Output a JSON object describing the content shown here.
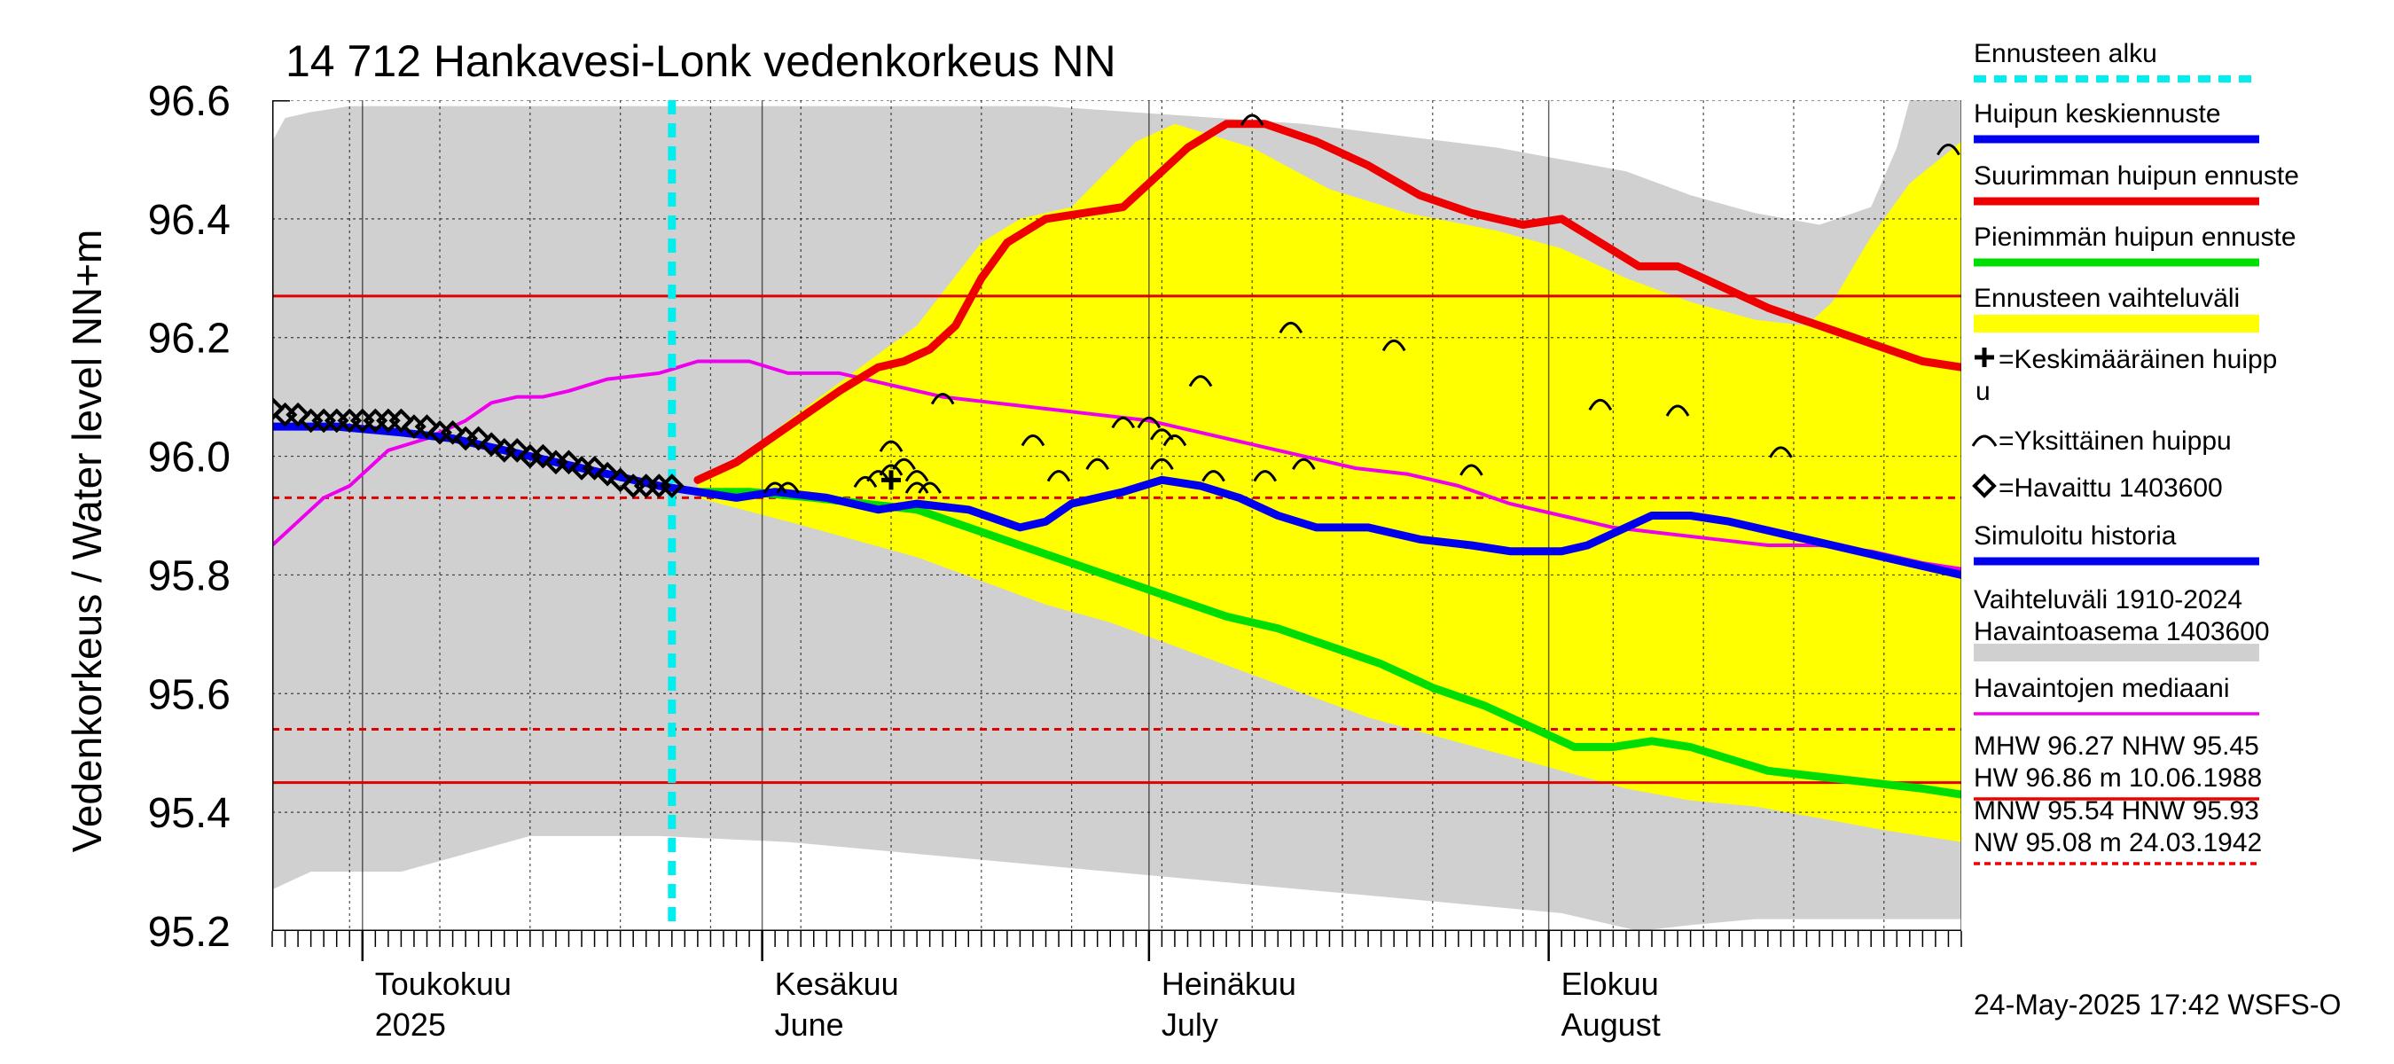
{
  "chart_data": {
    "type": "line",
    "title": "14 712 Hankavesi-Lonk vedenkorkeus NN",
    "ylabel": "Vedenkorkeus / Water level   NN+m",
    "ylim": [
      95.2,
      96.6
    ],
    "yticks": [
      "95.2",
      "95.4",
      "95.6",
      "95.8",
      "96.0",
      "96.2",
      "96.4",
      "96.6"
    ],
    "x_start_day": 0,
    "x_end_day": 131,
    "x_axis_note": "days since 2025-04-24",
    "month_labels": [
      {
        "day": 7,
        "line1": "Toukokuu",
        "line2": "2025"
      },
      {
        "day": 38,
        "line1": "Kesäkuu",
        "line2": "June"
      },
      {
        "day": 68,
        "line1": "Heinäkuu",
        "line2": "July"
      },
      {
        "day": 99,
        "line1": "Elokuu",
        "line2": "August"
      }
    ],
    "forecast_start_day": 31,
    "reference_lines": [
      {
        "name": "MHW",
        "value": 96.27,
        "style": "solid",
        "color": "#e00000"
      },
      {
        "name": "NHW",
        "value": 95.45,
        "style": "solid",
        "color": "#e00000"
      },
      {
        "name": "MNW",
        "value": 95.54,
        "style": "dashed",
        "color": "#e00000"
      },
      {
        "name": "HNW",
        "value": 95.93,
        "style": "dashed",
        "color": "#e00000"
      }
    ],
    "historical_band": {
      "name": "Vaihteluväli 1910-2024 Havaintoasema 1403600",
      "color": "#d0d0d0",
      "upper": [
        [
          0,
          96.53
        ],
        [
          1,
          96.57
        ],
        [
          3,
          96.58
        ],
        [
          6,
          96.59
        ],
        [
          30,
          96.59
        ],
        [
          60,
          96.59
        ],
        [
          80,
          96.56
        ],
        [
          95,
          96.52
        ],
        [
          105,
          96.48
        ],
        [
          110,
          96.44
        ],
        [
          115,
          96.41
        ],
        [
          120,
          96.39
        ],
        [
          124,
          96.42
        ],
        [
          126,
          96.52
        ],
        [
          127,
          96.6
        ],
        [
          131,
          96.6
        ]
      ],
      "lower": [
        [
          0,
          95.27
        ],
        [
          1,
          95.28
        ],
        [
          3,
          95.3
        ],
        [
          10,
          95.3
        ],
        [
          20,
          95.36
        ],
        [
          30,
          95.36
        ],
        [
          40,
          95.35
        ],
        [
          50,
          95.33
        ],
        [
          60,
          95.31
        ],
        [
          70,
          95.29
        ],
        [
          80,
          95.27
        ],
        [
          90,
          95.25
        ],
        [
          100,
          95.23
        ],
        [
          106,
          95.2
        ],
        [
          110,
          95.21
        ],
        [
          115,
          95.22
        ],
        [
          120,
          95.22
        ],
        [
          125,
          95.22
        ],
        [
          131,
          95.22
        ]
      ]
    },
    "forecast_band": {
      "name": "Ennusteen vaihteluväli",
      "color": "#ffff00",
      "upper": [
        [
          33,
          95.96
        ],
        [
          36,
          95.99
        ],
        [
          40,
          96.06
        ],
        [
          45,
          96.14
        ],
        [
          50,
          96.22
        ],
        [
          55,
          96.36
        ],
        [
          58,
          96.4
        ],
        [
          62,
          96.42
        ],
        [
          67,
          96.53
        ],
        [
          70,
          96.56
        ],
        [
          76,
          96.52
        ],
        [
          82,
          96.45
        ],
        [
          88,
          96.41
        ],
        [
          95,
          96.38
        ],
        [
          100,
          96.35
        ],
        [
          105,
          96.3
        ],
        [
          110,
          96.26
        ],
        [
          115,
          96.23
        ],
        [
          119,
          96.22
        ],
        [
          121,
          96.26
        ],
        [
          124,
          96.37
        ],
        [
          127,
          96.46
        ],
        [
          131,
          96.53
        ]
      ],
      "lower": [
        [
          33,
          95.93
        ],
        [
          40,
          95.89
        ],
        [
          45,
          95.86
        ],
        [
          50,
          95.83
        ],
        [
          55,
          95.79
        ],
        [
          60,
          95.75
        ],
        [
          65,
          95.72
        ],
        [
          70,
          95.68
        ],
        [
          75,
          95.64
        ],
        [
          80,
          95.6
        ],
        [
          85,
          95.56
        ],
        [
          90,
          95.53
        ],
        [
          95,
          95.5
        ],
        [
          100,
          95.47
        ],
        [
          105,
          95.44
        ],
        [
          110,
          95.42
        ],
        [
          115,
          95.41
        ],
        [
          120,
          95.39
        ],
        [
          125,
          95.37
        ],
        [
          131,
          95.35
        ]
      ]
    },
    "series": [
      {
        "name": "Havaintojen mediaani",
        "color": "#ee00ee",
        "width": 4,
        "points": [
          [
            0,
            95.85
          ],
          [
            2,
            95.89
          ],
          [
            4,
            95.93
          ],
          [
            6,
            95.95
          ],
          [
            9,
            96.01
          ],
          [
            12,
            96.03
          ],
          [
            15,
            96.06
          ],
          [
            17,
            96.09
          ],
          [
            19,
            96.1
          ],
          [
            21,
            96.1
          ],
          [
            23,
            96.11
          ],
          [
            26,
            96.13
          ],
          [
            30,
            96.14
          ],
          [
            33,
            96.16
          ],
          [
            37,
            96.16
          ],
          [
            40,
            96.14
          ],
          [
            44,
            96.14
          ],
          [
            48,
            96.12
          ],
          [
            52,
            96.1
          ],
          [
            56,
            96.09
          ],
          [
            60,
            96.08
          ],
          [
            64,
            96.07
          ],
          [
            68,
            96.06
          ],
          [
            72,
            96.04
          ],
          [
            76,
            96.02
          ],
          [
            80,
            96.0
          ],
          [
            84,
            95.98
          ],
          [
            88,
            95.97
          ],
          [
            92,
            95.95
          ],
          [
            96,
            95.92
          ],
          [
            100,
            95.9
          ],
          [
            104,
            95.88
          ],
          [
            108,
            95.87
          ],
          [
            112,
            95.86
          ],
          [
            116,
            95.85
          ],
          [
            120,
            95.85
          ],
          [
            124,
            95.84
          ],
          [
            128,
            95.82
          ],
          [
            131,
            95.81
          ]
        ]
      },
      {
        "name": "Suurimman huipun ennuste",
        "color": "#ee0000",
        "width": 9,
        "points": [
          [
            33,
            95.96
          ],
          [
            36,
            95.99
          ],
          [
            40,
            96.05
          ],
          [
            44,
            96.11
          ],
          [
            47,
            96.15
          ],
          [
            49,
            96.16
          ],
          [
            51,
            96.18
          ],
          [
            53,
            96.22
          ],
          [
            55,
            96.3
          ],
          [
            57,
            96.36
          ],
          [
            60,
            96.4
          ],
          [
            63,
            96.41
          ],
          [
            66,
            96.42
          ],
          [
            68,
            96.46
          ],
          [
            71,
            96.52
          ],
          [
            74,
            96.56
          ],
          [
            77,
            96.56
          ],
          [
            81,
            96.53
          ],
          [
            85,
            96.49
          ],
          [
            89,
            96.44
          ],
          [
            93,
            96.41
          ],
          [
            97,
            96.39
          ],
          [
            100,
            96.4
          ],
          [
            103,
            96.36
          ],
          [
            106,
            96.32
          ],
          [
            109,
            96.32
          ],
          [
            112,
            96.29
          ],
          [
            116,
            96.25
          ],
          [
            120,
            96.22
          ],
          [
            124,
            96.19
          ],
          [
            128,
            96.16
          ],
          [
            131,
            96.15
          ]
        ]
      },
      {
        "name": "Pienimmän huipun ennuste",
        "color": "#00dd00",
        "width": 9,
        "points": [
          [
            33,
            95.94
          ],
          [
            37,
            95.94
          ],
          [
            42,
            95.93
          ],
          [
            46,
            95.92
          ],
          [
            50,
            95.91
          ],
          [
            54,
            95.88
          ],
          [
            58,
            95.85
          ],
          [
            62,
            95.82
          ],
          [
            66,
            95.79
          ],
          [
            70,
            95.76
          ],
          [
            74,
            95.73
          ],
          [
            78,
            95.71
          ],
          [
            82,
            95.68
          ],
          [
            86,
            95.65
          ],
          [
            90,
            95.61
          ],
          [
            94,
            95.58
          ],
          [
            98,
            95.54
          ],
          [
            101,
            95.51
          ],
          [
            104,
            95.51
          ],
          [
            107,
            95.52
          ],
          [
            110,
            95.51
          ],
          [
            113,
            95.49
          ],
          [
            116,
            95.47
          ],
          [
            120,
            95.46
          ],
          [
            124,
            95.45
          ],
          [
            128,
            95.44
          ],
          [
            131,
            95.43
          ]
        ]
      },
      {
        "name": "Huipun keskiennuste",
        "color": "#0000ee",
        "width": 9,
        "points": [
          [
            0,
            96.05
          ],
          [
            5,
            96.05
          ],
          [
            10,
            96.04
          ],
          [
            14,
            96.03
          ],
          [
            18,
            96.01
          ],
          [
            22,
            95.99
          ],
          [
            26,
            95.97
          ],
          [
            30,
            95.95
          ],
          [
            33,
            95.94
          ],
          [
            36,
            95.93
          ],
          [
            39,
            95.94
          ],
          [
            43,
            95.93
          ],
          [
            47,
            95.91
          ],
          [
            50,
            95.92
          ],
          [
            54,
            95.91
          ],
          [
            58,
            95.88
          ],
          [
            60,
            95.89
          ],
          [
            62,
            95.92
          ],
          [
            64,
            95.93
          ],
          [
            66,
            95.94
          ],
          [
            69,
            95.96
          ],
          [
            72,
            95.95
          ],
          [
            75,
            95.93
          ],
          [
            78,
            95.9
          ],
          [
            81,
            95.88
          ],
          [
            85,
            95.88
          ],
          [
            89,
            95.86
          ],
          [
            93,
            95.85
          ],
          [
            96,
            95.84
          ],
          [
            100,
            95.84
          ],
          [
            102,
            95.85
          ],
          [
            104,
            95.87
          ],
          [
            107,
            95.9
          ],
          [
            110,
            95.9
          ],
          [
            113,
            95.89
          ],
          [
            117,
            95.87
          ],
          [
            121,
            95.85
          ],
          [
            125,
            95.83
          ],
          [
            129,
            95.81
          ],
          [
            131,
            95.8
          ]
        ]
      }
    ],
    "observed": {
      "name": "Havaittu 1403600",
      "points": [
        [
          0,
          96.08
        ],
        [
          1,
          96.07
        ],
        [
          2,
          96.07
        ],
        [
          3,
          96.06
        ],
        [
          4,
          96.06
        ],
        [
          5,
          96.06
        ],
        [
          6,
          96.06
        ],
        [
          7,
          96.06
        ],
        [
          8,
          96.06
        ],
        [
          9,
          96.06
        ],
        [
          10,
          96.06
        ],
        [
          11,
          96.05
        ],
        [
          12,
          96.05
        ],
        [
          13,
          96.04
        ],
        [
          14,
          96.04
        ],
        [
          15,
          96.03
        ],
        [
          16,
          96.03
        ],
        [
          17,
          96.02
        ],
        [
          18,
          96.01
        ],
        [
          19,
          96.01
        ],
        [
          20,
          96.0
        ],
        [
          21,
          96.0
        ],
        [
          22,
          95.99
        ],
        [
          23,
          95.99
        ],
        [
          24,
          95.98
        ],
        [
          25,
          95.98
        ],
        [
          26,
          95.97
        ],
        [
          27,
          95.96
        ],
        [
          28,
          95.95
        ],
        [
          29,
          95.95
        ],
        [
          30,
          95.95
        ],
        [
          31,
          95.95
        ]
      ]
    },
    "mean_peak": {
      "name": "Keskimääräinen huippu",
      "points": [
        [
          48,
          95.96
        ]
      ]
    },
    "single_peaks": {
      "name": "Yksittäinen huippu",
      "points": [
        [
          39,
          95.95
        ],
        [
          40,
          95.95
        ],
        [
          46,
          95.96
        ],
        [
          47,
          95.97
        ],
        [
          48,
          96.02
        ],
        [
          48,
          95.98
        ],
        [
          49,
          95.99
        ],
        [
          50,
          95.97
        ],
        [
          50,
          95.95
        ],
        [
          51,
          95.95
        ],
        [
          52,
          96.1
        ],
        [
          59,
          96.03
        ],
        [
          61,
          95.97
        ],
        [
          64,
          95.99
        ],
        [
          66,
          96.06
        ],
        [
          68,
          96.06
        ],
        [
          69,
          96.04
        ],
        [
          70,
          96.03
        ],
        [
          69,
          95.99
        ],
        [
          72,
          96.13
        ],
        [
          73,
          95.97
        ],
        [
          77,
          95.97
        ],
        [
          79,
          96.22
        ],
        [
          80,
          95.99
        ],
        [
          87,
          96.19
        ],
        [
          93,
          95.98
        ],
        [
          103,
          96.09
        ],
        [
          109,
          96.08
        ],
        [
          117,
          96.01
        ],
        [
          130,
          96.52
        ],
        [
          76,
          96.57
        ]
      ]
    },
    "legend": [
      {
        "label": "Ennusteen alku",
        "kind": "dashed",
        "color": "#00eeee"
      },
      {
        "label": "Huipun keskiennuste",
        "kind": "line",
        "color": "#0000ee"
      },
      {
        "label": "Suurimman huipun ennuste",
        "kind": "line",
        "color": "#ee0000"
      },
      {
        "label": "Pienimmän huipun ennuste",
        "kind": "line",
        "color": "#00dd00"
      },
      {
        "label": "Ennusteen vaihteluväli",
        "kind": "band",
        "color": "#ffff00"
      },
      {
        "label": "=Keskimääräinen huipp",
        "label2": "u",
        "kind": "plus",
        "color": "#000000"
      },
      {
        "label": "=Yksittäinen huippu",
        "kind": "arc",
        "color": "#000000"
      },
      {
        "label": "=Havaittu 1403600",
        "kind": "diamond",
        "color": "#000000"
      },
      {
        "label": "Simuloitu historia",
        "kind": "line",
        "color": "#0000ee"
      },
      {
        "label": "Vaihteluväli 1910-2024",
        "label2": " Havaintoasema 1403600",
        "kind": "band",
        "color": "#d0d0d0"
      },
      {
        "label": "Havaintojen mediaani",
        "kind": "thinline",
        "color": "#ee00ee"
      },
      {
        "label": "MHW  96.27 NHW  95.45",
        "label2": "HW  96.86 m 10.06.1988",
        "kind": "thinline",
        "color": "#ee0000"
      },
      {
        "label": "MNW  95.54 HNW  95.93",
        "label2": "NW  95.08 m 24.03.1942",
        "kind": "dashedthin",
        "color": "#ee0000"
      }
    ],
    "footer": "24-May-2025 17:42 WSFS-O"
  }
}
